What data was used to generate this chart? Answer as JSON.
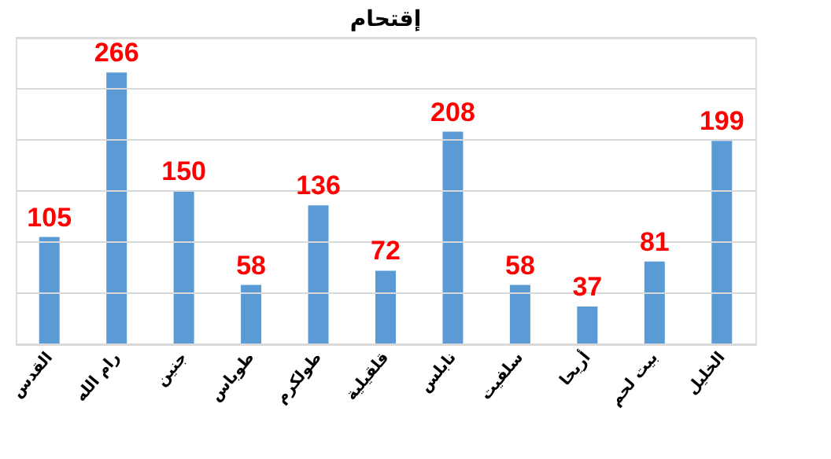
{
  "chart_data": {
    "type": "bar",
    "title": "إقتحام",
    "categories": [
      "القدس",
      "رام الله",
      "جنين",
      "طوباس",
      "طولكرم",
      "قلقيلية",
      "نابلس",
      "سلفيت",
      "أريحا",
      "بيت لحم",
      "الخليل"
    ],
    "series": [
      {
        "color": "#5b9bd5",
        "values": [
          105,
          266,
          150,
          58,
          136,
          72,
          208,
          58,
          37,
          81,
          199
        ]
      }
    ],
    "ylim": [
      0,
      300
    ],
    "yticks": [
      {
        "value": 0,
        "label": null
      },
      {
        "value": 50,
        "label": null
      },
      {
        "value": 100,
        "label": null
      },
      {
        "value": 150,
        "label": null
      },
      {
        "value": 200,
        "label": null
      },
      {
        "value": 250,
        "label": null
      },
      {
        "value": 300,
        "label": null
      }
    ],
    "grid": "y",
    "data_labels": true,
    "tick_labels": "x"
  }
}
